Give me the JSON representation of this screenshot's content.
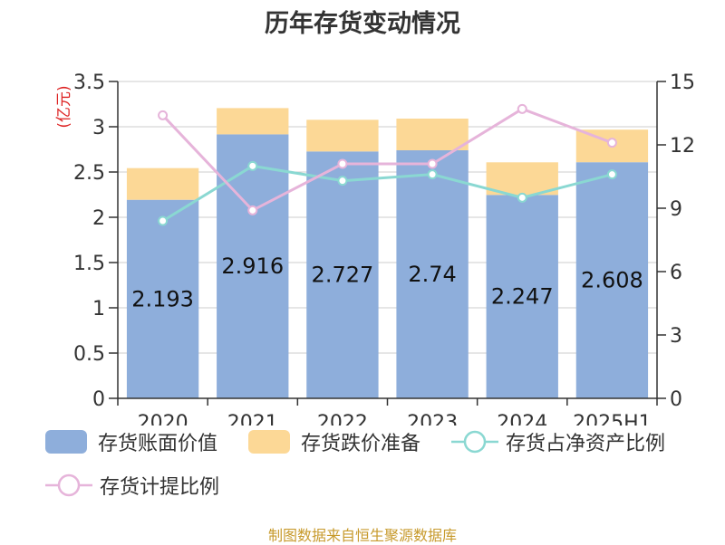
{
  "chart_data": {
    "type": "bar",
    "title": "历年存货变动情况",
    "y_unit": "(亿元)",
    "categories": [
      "2020",
      "2021",
      "2022",
      "2023",
      "2024",
      "2025H1"
    ],
    "ylim": [
      0,
      3.5
    ],
    "y_ticks": [
      "0",
      "0.5",
      "1",
      "1.5",
      "2",
      "2.5",
      "3",
      "3.5"
    ],
    "y2lim": [
      0,
      15
    ],
    "y2_ticks": [
      "0",
      "3",
      "6",
      "9",
      "12",
      "15"
    ],
    "grid": true,
    "legend_position": "bottom",
    "series": [
      {
        "name": "存货账面价值",
        "type": "bar",
        "axis": "left",
        "color": "#8eaedb",
        "values": [
          2.193,
          2.916,
          2.727,
          2.74,
          2.247,
          2.608
        ],
        "labels": [
          "2.193",
          "2.916",
          "2.727",
          "2.74",
          "2.247",
          "2.608"
        ]
      },
      {
        "name": "存货跌价准备",
        "type": "bar",
        "axis": "left",
        "color": "#fcd896",
        "values": [
          0.35,
          0.29,
          0.35,
          0.35,
          0.36,
          0.36
        ]
      },
      {
        "name": "存货占净资产比例",
        "type": "line",
        "axis": "right",
        "color": "#8ad8d2",
        "values": [
          8.4,
          11.0,
          10.3,
          10.6,
          9.5,
          10.6
        ]
      },
      {
        "name": "存货计提比例",
        "type": "line",
        "axis": "right",
        "color": "#e6b4da",
        "values": [
          13.4,
          8.9,
          11.1,
          11.1,
          13.7,
          12.1
        ]
      }
    ]
  },
  "source": "制图数据来自恒生聚源数据库"
}
